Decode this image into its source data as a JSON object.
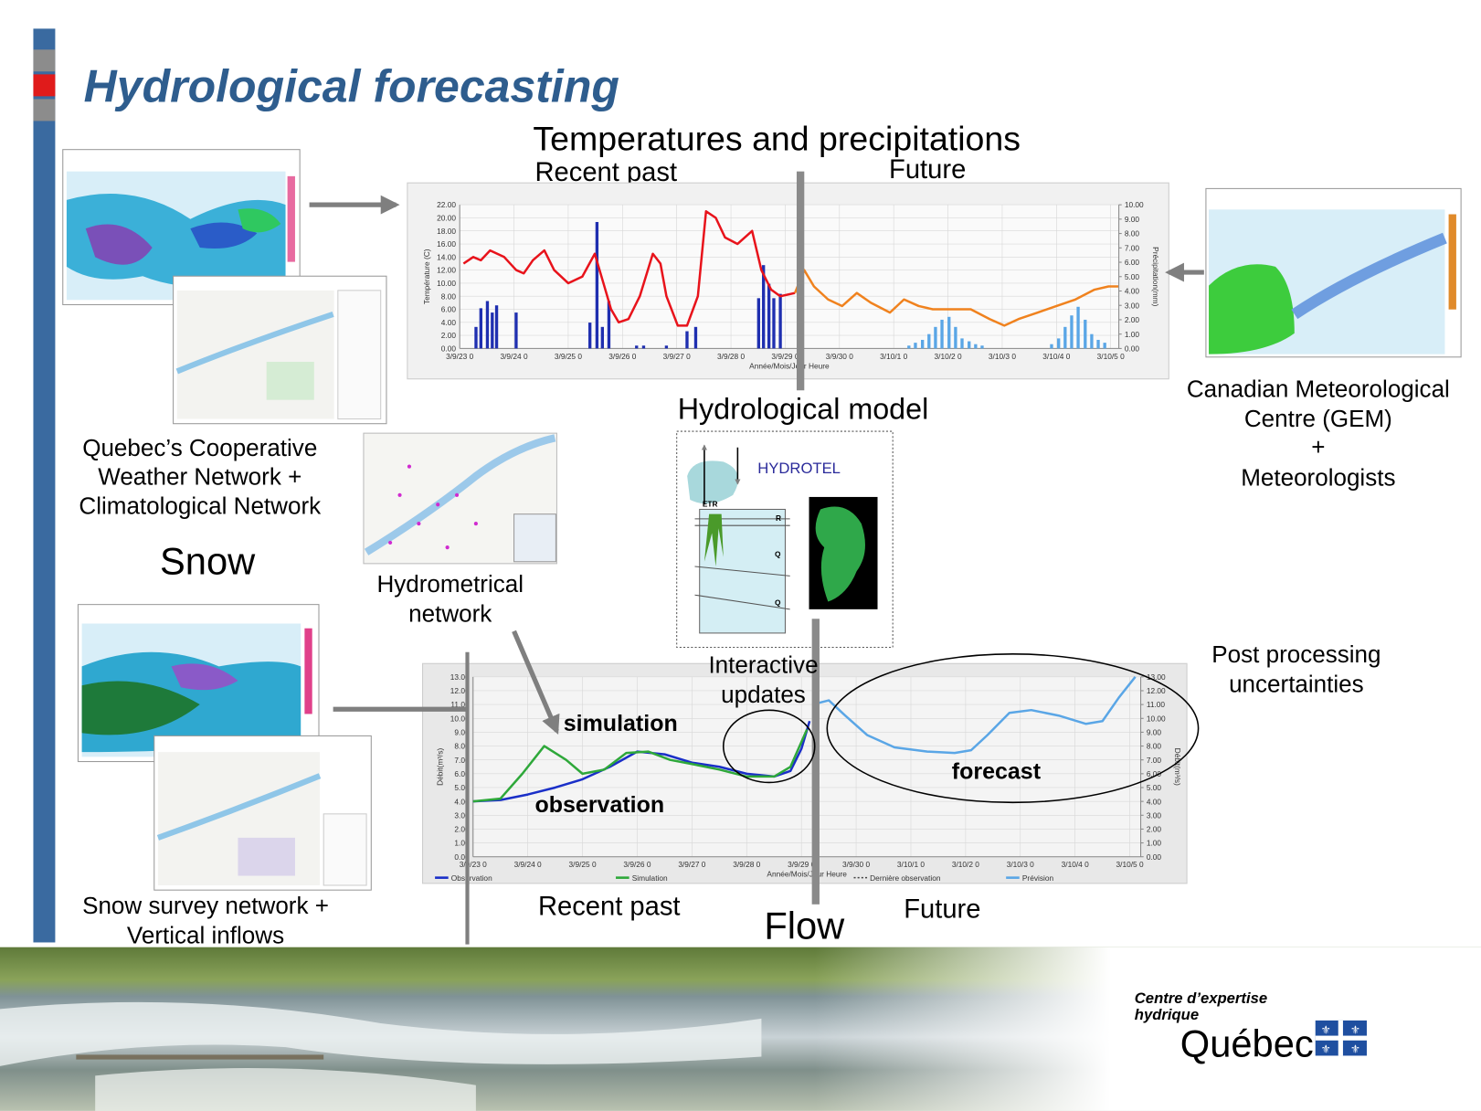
{
  "title": "Hydrological forecasting",
  "temperature_panel": {
    "heading": "Temperatures and precipitations",
    "recent_past": "Recent past",
    "future": "Future"
  },
  "temperature_chart": {
    "type": "line",
    "y_label": "Température (C)",
    "y2_label": "Précipitation(mm)",
    "x_label": "Année/Mois/Jour Heure",
    "xlim": [
      0,
      12.15
    ],
    "xticks": [
      {
        "value": 0,
        "label": "3/9/23 0"
      },
      {
        "value": 1,
        "label": "3/9/24 0"
      },
      {
        "value": 2,
        "label": "3/9/25 0"
      },
      {
        "value": 3,
        "label": "3/9/26 0"
      },
      {
        "value": 4,
        "label": "3/9/27 0"
      },
      {
        "value": 5,
        "label": "3/9/28 0"
      },
      {
        "value": 6,
        "label": "3/9/29 0"
      },
      {
        "value": 7,
        "label": "3/9/30 0"
      },
      {
        "value": 8,
        "label": "3/10/1 0"
      },
      {
        "value": 9,
        "label": "3/10/2 0"
      },
      {
        "value": 10,
        "label": "3/10/3 0"
      },
      {
        "value": 11,
        "label": "3/10/4 0"
      },
      {
        "value": 12,
        "label": "3/10/5 0"
      }
    ],
    "ylim": [
      0,
      22
    ],
    "yticks": [
      {
        "value": 0,
        "label": "0.00"
      },
      {
        "value": 2,
        "label": "2.00"
      },
      {
        "value": 4,
        "label": "4.00"
      },
      {
        "value": 6,
        "label": "6.00"
      },
      {
        "value": 8,
        "label": "8.00"
      },
      {
        "value": 10,
        "label": "10.00"
      },
      {
        "value": 12,
        "label": "12.00"
      },
      {
        "value": 14,
        "label": "14.00"
      },
      {
        "value": 16,
        "label": "16.00"
      },
      {
        "value": 18,
        "label": "18.00"
      },
      {
        "value": 20,
        "label": "20.00"
      },
      {
        "value": 22,
        "label": "22.00"
      }
    ],
    "y2lim": [
      0,
      10
    ],
    "y2ticks": [
      {
        "value": 0,
        "label": "0.00"
      },
      {
        "value": 1,
        "label": "1.00"
      },
      {
        "value": 2,
        "label": "2.00"
      },
      {
        "value": 3,
        "label": "3.00"
      },
      {
        "value": 4,
        "label": "4.00"
      },
      {
        "value": 5,
        "label": "5.00"
      },
      {
        "value": 6,
        "label": "6.00"
      },
      {
        "value": 7,
        "label": "7.00"
      },
      {
        "value": 8,
        "label": "8.00"
      },
      {
        "value": 9,
        "label": "9.00"
      },
      {
        "value": 10,
        "label": "10.00"
      }
    ],
    "grid": true,
    "series": [
      {
        "type": "bar",
        "axis": "y2",
        "color": "#1f2fb0",
        "x": [
          0.3,
          0.39,
          0.51,
          0.6,
          0.68,
          1.04,
          2.4,
          2.53,
          2.63,
          2.75,
          3.26,
          3.39,
          3.81,
          4.19,
          4.35,
          5.51,
          5.6,
          5.7,
          5.79,
          5.91
        ],
        "values": [
          1.5,
          2.8,
          3.3,
          2.5,
          3.0,
          2.5,
          1.8,
          8.8,
          1.5,
          3.3,
          0.2,
          0.2,
          0.2,
          1.2,
          1.5,
          3.5,
          5.8,
          4.5,
          3.5,
          3.8
        ]
      },
      {
        "type": "bar",
        "axis": "y2",
        "color": "#5aa6e6",
        "x": [
          8.28,
          8.4,
          8.53,
          8.65,
          8.77,
          8.89,
          9.02,
          9.14,
          9.26,
          9.39,
          9.51,
          9.63,
          10.91,
          11.04,
          11.16,
          11.28,
          11.4,
          11.53,
          11.65,
          11.77,
          11.89
        ],
        "values": [
          0.2,
          0.4,
          0.6,
          1.0,
          1.5,
          2.0,
          2.2,
          1.5,
          0.7,
          0.5,
          0.3,
          0.2,
          0.3,
          0.7,
          1.5,
          2.3,
          2.9,
          2.0,
          1.0,
          0.6,
          0.4
        ]
      },
      {
        "type": "line",
        "color": "#e8131b",
        "x": [
          0.07,
          0.25,
          0.39,
          0.56,
          0.82,
          1.04,
          1.18,
          1.35,
          1.56,
          1.74,
          2.0,
          2.26,
          2.49,
          2.65,
          2.79,
          2.93,
          3.11,
          3.32,
          3.56,
          3.7,
          3.81,
          4.02,
          4.19,
          4.39,
          4.54,
          4.72,
          4.89,
          5.12,
          5.39,
          5.56,
          5.74,
          5.91,
          6.18
        ],
        "values": [
          13,
          14,
          13.5,
          15,
          14,
          12,
          11.5,
          13.5,
          15,
          12,
          10,
          11,
          14.5,
          10,
          6,
          4,
          4.5,
          8,
          14.5,
          13,
          8,
          3.5,
          3.5,
          8,
          21,
          20,
          17,
          16,
          18,
          12,
          9,
          8,
          8.5
        ]
      },
      {
        "type": "line",
        "color": "#f0821e",
        "x": [
          6.18,
          6.35,
          6.53,
          6.79,
          7.05,
          7.32,
          7.58,
          7.93,
          8.19,
          8.46,
          8.72,
          9.07,
          9.42,
          9.77,
          10.04,
          10.3,
          10.65,
          11.0,
          11.35,
          11.7,
          11.96,
          12.14
        ],
        "values": [
          8.5,
          12,
          9.5,
          7.5,
          6.5,
          8.5,
          7,
          5.5,
          7.5,
          6.5,
          6,
          6,
          6,
          4.5,
          3.5,
          4.5,
          5.5,
          6.5,
          7.5,
          9,
          9.5,
          9.5
        ]
      }
    ]
  },
  "gem_source": [
    "Canadian Meteorological",
    "Centre (GEM)",
    "+",
    "Meteorologists"
  ],
  "weather_network": [
    "Quebec’s Cooperative",
    "Weather Network +",
    "Climatological Network"
  ],
  "hydrometric_network": [
    "Hydrometrical",
    "network"
  ],
  "snow": "Snow",
  "snow_network": [
    "Snow survey network +",
    "Vertical inflows"
  ],
  "hydrological_model": {
    "heading": "Hydrological model",
    "model_name": "HYDROTEL",
    "labels": [
      "ETR",
      "R",
      "Q",
      "Q"
    ]
  },
  "flow_panel": {
    "interactive_updates": [
      "Interactive",
      "updates"
    ],
    "post_processing": [
      "Post processing",
      "uncertainties"
    ],
    "simulation": "simulation",
    "observation": "observation",
    "forecast": "forecast",
    "recent_past": "Recent past",
    "flow": "Flow",
    "future": "Future"
  },
  "flow_chart": {
    "type": "line",
    "y_label": "Débit(m³/s)",
    "y2_label": "Débit(m³/s)",
    "x_label": "Année/Mois/Jour Heure",
    "xlim": [
      0,
      12.2
    ],
    "xticks": [
      {
        "value": 0,
        "label": "3/9/23 0"
      },
      {
        "value": 1,
        "label": "3/9/24 0"
      },
      {
        "value": 2,
        "label": "3/9/25 0"
      },
      {
        "value": 3,
        "label": "3/9/26 0"
      },
      {
        "value": 4,
        "label": "3/9/27 0"
      },
      {
        "value": 5,
        "label": "3/9/28 0"
      },
      {
        "value": 6,
        "label": "3/9/29 0"
      },
      {
        "value": 7,
        "label": "3/9/30 0"
      },
      {
        "value": 8,
        "label": "3/10/1 0"
      },
      {
        "value": 9,
        "label": "3/10/2 0"
      },
      {
        "value": 10,
        "label": "3/10/3 0"
      },
      {
        "value": 11,
        "label": "3/10/4 0"
      },
      {
        "value": 12,
        "label": "3/10/5 0"
      }
    ],
    "ylim": [
      0,
      13
    ],
    "yticks": [
      {
        "value": 0,
        "label": "0.00"
      },
      {
        "value": 1,
        "label": "1.00"
      },
      {
        "value": 2,
        "label": "2.00"
      },
      {
        "value": 3,
        "label": "3.00"
      },
      {
        "value": 4,
        "label": "4.00"
      },
      {
        "value": 5,
        "label": "5.00"
      },
      {
        "value": 6,
        "label": "6.00"
      },
      {
        "value": 7,
        "label": "7.00"
      },
      {
        "value": 8,
        "label": "8.00"
      },
      {
        "value": 9,
        "label": "9.00"
      },
      {
        "value": 10,
        "label": "10.00"
      },
      {
        "value": 11,
        "label": "11.00"
      },
      {
        "value": 12,
        "label": "12.00"
      },
      {
        "value": 13,
        "label": "13.00"
      }
    ],
    "y2lim": [
      0,
      13
    ],
    "y2ticks": [
      {
        "value": 0,
        "label": "0.00"
      },
      {
        "value": 1,
        "label": "1.00"
      },
      {
        "value": 2,
        "label": "2.00"
      },
      {
        "value": 3,
        "label": "3.00"
      },
      {
        "value": 4,
        "label": "4.00"
      },
      {
        "value": 5,
        "label": "5.00"
      },
      {
        "value": 6,
        "label": "6.00"
      },
      {
        "value": 7,
        "label": "7.00"
      },
      {
        "value": 8,
        "label": "8.00"
      },
      {
        "value": 9,
        "label": "9.00"
      },
      {
        "value": 10,
        "label": "10.00"
      },
      {
        "value": 11,
        "label": "11.00"
      },
      {
        "value": 12,
        "label": "12.00"
      },
      {
        "value": 13,
        "label": "13.00"
      }
    ],
    "grid": true,
    "series": [
      {
        "name": "Observation",
        "type": "line",
        "color": "#1a2fc8",
        "x": [
          0,
          0.5,
          1,
          1.5,
          2,
          2.5,
          3,
          3.5,
          4,
          4.5,
          5,
          5.5,
          5.8,
          6.0,
          6.15
        ],
        "values": [
          4,
          4.1,
          4.5,
          5,
          5.6,
          6.5,
          7.6,
          7.4,
          6.8,
          6.5,
          6.0,
          5.8,
          6.2,
          7.8,
          9.8
        ]
      },
      {
        "name": "Simulation",
        "type": "line",
        "color": "#2ea83a",
        "x": [
          0,
          0.5,
          0.9,
          1.3,
          1.7,
          2,
          2.4,
          2.8,
          3.2,
          3.6,
          4,
          4.5,
          5,
          5.5,
          5.8,
          6.1
        ],
        "values": [
          4,
          4.2,
          6,
          8,
          7,
          6,
          6.3,
          7.5,
          7.6,
          7,
          6.7,
          6.3,
          5.8,
          5.8,
          6.5,
          9.2
        ]
      },
      {
        "name": "Prévision",
        "type": "line",
        "color": "#5aa6e6",
        "x": [
          6.3,
          6.5,
          6.8,
          7.2,
          7.7,
          8.3,
          8.8,
          9.1,
          9.4,
          9.8,
          10.2,
          10.7,
          11.2,
          11.5,
          11.8,
          12.1
        ],
        "values": [
          11.1,
          11.3,
          10.2,
          8.8,
          7.9,
          7.6,
          7.5,
          7.7,
          8.8,
          10.4,
          10.6,
          10.2,
          9.6,
          9.8,
          11.5,
          13
        ]
      }
    ],
    "last_observation_legend": "Dernière observation"
  },
  "logo": {
    "line1": "Centre d’expertise",
    "line2": "hydrique",
    "name": "Québec"
  }
}
